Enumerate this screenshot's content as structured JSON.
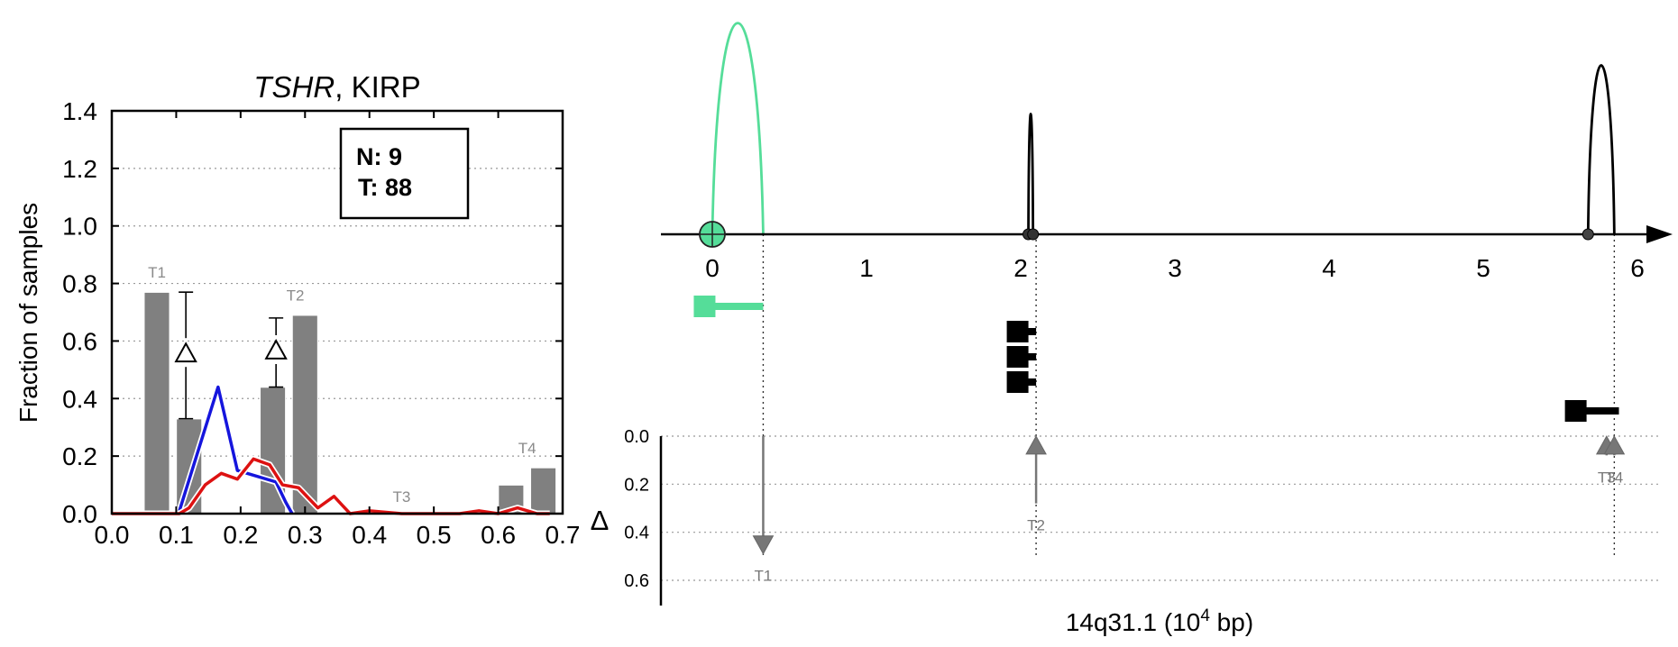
{
  "chart_data": [
    {
      "type": "bar",
      "title_gene": "TSHR",
      "title_rest": ", KIRP",
      "ylabel": "Fraction of samples",
      "xlim": [
        0.0,
        0.7
      ],
      "ylim": [
        0.0,
        1.4
      ],
      "xticks": [
        "0.0",
        "0.1",
        "0.2",
        "0.3",
        "0.4",
        "0.5",
        "0.6",
        "0.7"
      ],
      "yticks": [
        "0.0",
        "0.2",
        "0.4",
        "0.6",
        "0.8",
        "1.0",
        "1.2",
        "1.4"
      ],
      "x_end_symbol": "Δ",
      "grid": "horizontal dotted",
      "legend_box": {
        "n_label": "N: 9",
        "t_label": "T: 88"
      },
      "bars": [
        {
          "x0": 0.05,
          "x1": 0.09,
          "value": 0.77
        },
        {
          "x0": 0.1,
          "x1": 0.14,
          "value": 0.33
        },
        {
          "x0": 0.23,
          "x1": 0.27,
          "value": 0.44
        },
        {
          "x0": 0.28,
          "x1": 0.32,
          "value": 0.69
        },
        {
          "x0": 0.6,
          "x1": 0.64,
          "value": 0.1
        },
        {
          "x0": 0.65,
          "x1": 0.69,
          "value": 0.16
        }
      ],
      "deltas": [
        {
          "x": 0.115,
          "value": 0.56,
          "err_low": 0.33,
          "err_high": 0.77
        },
        {
          "x": 0.255,
          "value": 0.57,
          "err_low": 0.44,
          "err_high": 0.68
        }
      ],
      "transcript_labels": [
        {
          "label": "T1",
          "x": 0.07,
          "y": 0.82
        },
        {
          "label": "T2",
          "x": 0.285,
          "y": 0.74
        },
        {
          "label": "T3",
          "x": 0.45,
          "y": 0.04
        },
        {
          "label": "T4",
          "x": 0.645,
          "y": 0.21
        }
      ],
      "series": [
        {
          "color": "#1515dd",
          "x": [
            0.105,
            0.165,
            0.195,
            0.255,
            0.27,
            0.28
          ],
          "y": [
            0.01,
            0.44,
            0.15,
            0.11,
            0.04,
            0.0
          ]
        },
        {
          "color": "#dd1111",
          "x": [
            0.0,
            0.035,
            0.105,
            0.12,
            0.145,
            0.17,
            0.195,
            0.22,
            0.245,
            0.265,
            0.29,
            0.32,
            0.345,
            0.37,
            0.4,
            0.45,
            0.5,
            0.54,
            0.57,
            0.6,
            0.63,
            0.66,
            0.68
          ],
          "y": [
            0.0,
            0.0,
            0.0,
            0.02,
            0.1,
            0.14,
            0.12,
            0.19,
            0.17,
            0.1,
            0.09,
            0.02,
            0.06,
            0.0,
            0.01,
            0.0,
            0.0,
            0.0,
            0.01,
            0.0,
            0.02,
            0.0,
            0.0
          ]
        }
      ]
    },
    {
      "type": "genome-track",
      "xlabel_prefix": "14q31.1 (10",
      "xlabel_exp": "4",
      "xlabel_suffix": " bp)",
      "xlim": [
        -0.35,
        6.05
      ],
      "xticks": [
        "0",
        "1",
        "2",
        "3",
        "4",
        "5",
        "6"
      ],
      "lower_yticks": [
        "0.0",
        "0.2",
        "0.4",
        "0.6"
      ],
      "lower_ylim": [
        0.0,
        0.66
      ],
      "arcs": [
        {
          "start": 0.0,
          "end": 0.33,
          "height": 1.0,
          "color": "#55dd99"
        },
        {
          "start": 2.05,
          "end": 2.08,
          "height": 0.57,
          "color": "#000000"
        },
        {
          "start": 5.68,
          "end": 5.85,
          "height": 0.8,
          "color": "#000000"
        }
      ],
      "sites": [
        {
          "x": 0.0,
          "kind": "large",
          "color": "#55dd99"
        },
        {
          "x": 2.05,
          "kind": "small",
          "color": "#333333"
        },
        {
          "x": 2.08,
          "kind": "small",
          "color": "#333333"
        },
        {
          "x": 5.68,
          "kind": "small",
          "color": "#444444"
        }
      ],
      "transcripts": [
        {
          "x": -0.05,
          "end": 0.33,
          "row": 0,
          "color": "#55dd99"
        },
        {
          "x": 1.98,
          "end": 2.1,
          "row": 1,
          "color": "#000000"
        },
        {
          "x": 1.98,
          "end": 2.1,
          "row": 2,
          "color": "#000000"
        },
        {
          "x": 1.98,
          "end": 2.1,
          "row": 3,
          "color": "#000000"
        },
        {
          "x": 5.6,
          "end": 5.88,
          "row": 4,
          "color": "#000000"
        }
      ],
      "guides": [
        0.33,
        2.1,
        5.85
      ],
      "deltas": [
        {
          "label": "T1",
          "x": 0.33,
          "value": 0.4,
          "direction": "down"
        },
        {
          "label": "T2",
          "x": 2.1,
          "value": 0.25,
          "direction": "up"
        },
        {
          "label": "T3",
          "x": 5.8,
          "value": 0.05,
          "direction": "up"
        },
        {
          "label": "T4",
          "x": 5.85,
          "value": 0.05,
          "direction": "up"
        }
      ]
    }
  ]
}
